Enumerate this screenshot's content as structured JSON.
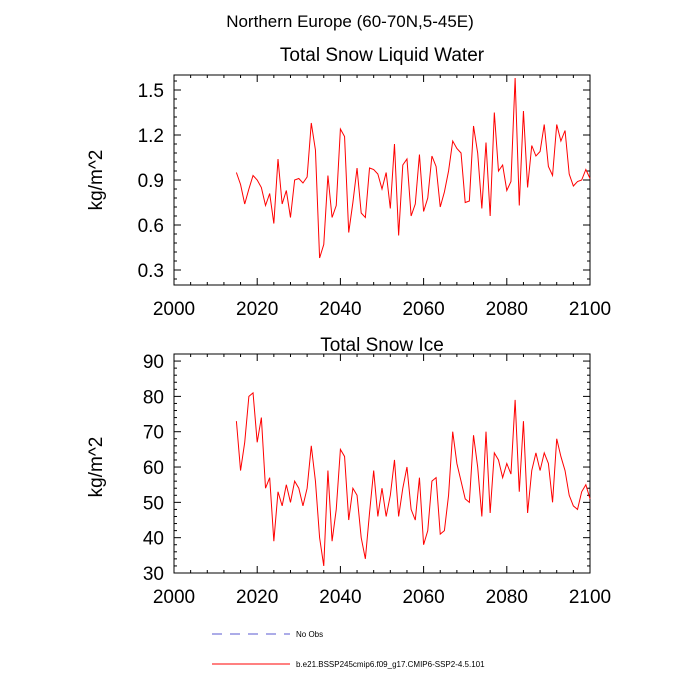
{
  "figure_title": "Northern Europe (60-70N,5-45E)",
  "chart_data": [
    {
      "type": "line",
      "title": "Total Snow Liquid Water",
      "xlabel": "",
      "ylabel": "kg/m^2",
      "xlim": [
        2000,
        2100
      ],
      "ylim": [
        0.2,
        1.6
      ],
      "xticks": [
        2000,
        2020,
        2040,
        2060,
        2080,
        2100
      ],
      "xtick_labels": [
        "2000",
        "2020",
        "2040",
        "2060",
        "2080",
        "2100"
      ],
      "yticks": [
        0.3,
        0.6,
        0.9,
        1.2,
        1.5
      ],
      "ytick_labels": [
        "0.3",
        "0.6",
        "0.9",
        "1.2",
        "1.5"
      ],
      "x_start": 2015,
      "series": [
        {
          "name": "b.e21.BSSP245cmip6.f09_g17.CMIP6-SSP2-4.5.101",
          "color": "#ff0000",
          "values": [
            0.95,
            0.87,
            0.74,
            0.84,
            0.93,
            0.9,
            0.85,
            0.73,
            0.81,
            0.61,
            1.04,
            0.74,
            0.83,
            0.65,
            0.9,
            0.91,
            0.88,
            0.92,
            1.28,
            1.1,
            0.38,
            0.47,
            0.93,
            0.65,
            0.73,
            1.24,
            1.19,
            0.55,
            0.75,
            0.98,
            0.68,
            0.65,
            0.98,
            0.97,
            0.94,
            0.84,
            0.95,
            0.71,
            1.14,
            0.53,
            1.0,
            1.04,
            0.66,
            0.74,
            1.07,
            0.69,
            0.78,
            1.06,
            0.99,
            0.72,
            0.82,
            0.96,
            1.16,
            1.11,
            1.08,
            0.75,
            0.76,
            1.26,
            1.08,
            0.71,
            1.15,
            0.66,
            1.35,
            0.96,
            1.0,
            0.83,
            0.89,
            1.58,
            0.73,
            1.36,
            0.85,
            1.13,
            1.06,
            1.09,
            1.27,
            0.99,
            0.93,
            1.27,
            1.16,
            1.23,
            0.94,
            0.86,
            0.89,
            0.9,
            0.97,
            0.91
          ]
        }
      ]
    },
    {
      "type": "line",
      "title": "Total Snow Ice",
      "xlabel": "",
      "ylabel": "kg/m^2",
      "xlim": [
        2000,
        2100
      ],
      "ylim": [
        30,
        92
      ],
      "xticks": [
        2000,
        2020,
        2040,
        2060,
        2080,
        2100
      ],
      "xtick_labels": [
        "2000",
        "2020",
        "2040",
        "2060",
        "2080",
        "2100"
      ],
      "yticks": [
        30,
        40,
        50,
        60,
        70,
        80,
        90
      ],
      "ytick_labels": [
        "30",
        "40",
        "50",
        "60",
        "70",
        "80",
        "90"
      ],
      "x_start": 2015,
      "series": [
        {
          "name": "b.e21.BSSP245cmip6.f09_g17.CMIP6-SSP2-4.5.101",
          "color": "#ff0000",
          "values": [
            73,
            59,
            67,
            80,
            81,
            67,
            74,
            54,
            57,
            39,
            53,
            49,
            55,
            50,
            56,
            54,
            49,
            54,
            66,
            56,
            40,
            32,
            59,
            39,
            48,
            65,
            63,
            45,
            54,
            52,
            40,
            34,
            47,
            59,
            46,
            54,
            46,
            52,
            62,
            46,
            54,
            60,
            48,
            45,
            57,
            38,
            42,
            56,
            57,
            41,
            42,
            52,
            70,
            61,
            56,
            51,
            50,
            69,
            60,
            46,
            70,
            47,
            64,
            62,
            57,
            61,
            58,
            79,
            53,
            73,
            47,
            59,
            64,
            59,
            64,
            61,
            50,
            68,
            63,
            59,
            52,
            49,
            48,
            53,
            55,
            51
          ]
        }
      ]
    }
  ],
  "legend": {
    "placement": "bottom",
    "entries": [
      {
        "label": "No Obs",
        "color": "#5a5ad0",
        "style": "dashed"
      },
      {
        "label": "b.e21.BSSP245cmip6.f09_g17.CMIP6-SSP2-4.5.101",
        "color": "#ff0000",
        "style": "solid"
      }
    ]
  }
}
